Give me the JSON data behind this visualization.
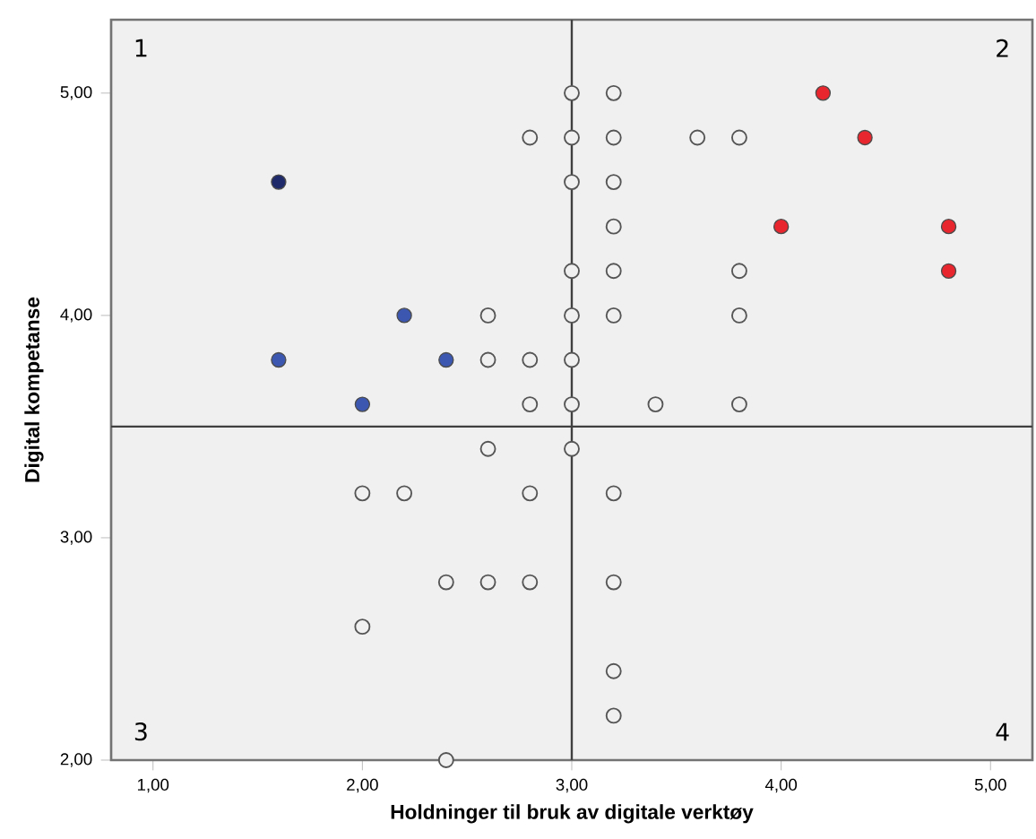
{
  "chart_data": {
    "type": "scatter",
    "xlabel": "Holdninger til bruk av digitale verktøy",
    "ylabel": "Digital kompetanse",
    "xlim": [
      0.8,
      5.2
    ],
    "ylim": [
      2.0,
      5.33
    ],
    "xticks": [
      {
        "value": 1,
        "label": "1,00"
      },
      {
        "value": 2,
        "label": "2,00"
      },
      {
        "value": 3,
        "label": "3,00"
      },
      {
        "value": 4,
        "label": "4,00"
      },
      {
        "value": 5,
        "label": "5,00"
      }
    ],
    "yticks": [
      {
        "value": 2,
        "label": "2,00"
      },
      {
        "value": 3,
        "label": "3,00"
      },
      {
        "value": 4,
        "label": "4,00"
      },
      {
        "value": 5,
        "label": "5,00"
      }
    ],
    "marker": "circle",
    "ref_lines": [
      {
        "axis": "x",
        "value": 3,
        "color": "#404040"
      },
      {
        "axis": "y",
        "value": 3.5,
        "color": "#404040"
      }
    ],
    "annotations": [
      "1",
      "2",
      "3",
      "4"
    ],
    "series": [
      {
        "color": "#555555",
        "x": [
          3.0,
          3.2,
          2.8,
          3.0,
          3.2,
          3.6,
          3.8,
          3.0,
          3.2,
          3.2,
          3.0,
          3.2,
          3.8,
          2.6,
          3.0,
          3.2,
          3.8,
          2.6,
          2.8,
          3.0,
          2.8,
          3.0,
          3.4,
          3.8,
          2.6,
          3.0,
          2.0,
          2.2,
          2.8,
          3.2,
          2.4,
          2.6,
          2.8,
          3.2,
          2.0,
          3.2,
          3.2,
          2.4
        ],
        "values": [
          5.0,
          5.0,
          4.8,
          4.8,
          4.8,
          4.8,
          4.8,
          4.6,
          4.6,
          4.4,
          4.2,
          4.2,
          4.2,
          4.0,
          4.0,
          4.0,
          4.0,
          3.8,
          3.8,
          3.8,
          3.6,
          3.6,
          3.6,
          3.6,
          3.4,
          3.4,
          3.2,
          3.2,
          3.2,
          3.2,
          2.8,
          2.8,
          2.8,
          2.8,
          2.6,
          2.4,
          2.2,
          2.0
        ]
      },
      {
        "colors": [
          "#1f2a6b",
          "#3b57b0",
          "#3b57b0",
          "#3b57b0",
          "#3b57b0"
        ],
        "x": [
          1.6,
          2.2,
          1.6,
          2.4,
          2.0
        ],
        "values": [
          4.6,
          4.0,
          3.8,
          3.8,
          3.6
        ]
      },
      {
        "colors": [
          "#e8262e",
          "#e8262e",
          "#e8262e",
          "#e8262e",
          "#e8262e"
        ],
        "x": [
          4.2,
          4.4,
          4.0,
          4.8,
          4.8
        ],
        "values": [
          5.0,
          4.8,
          4.4,
          4.4,
          4.2
        ]
      }
    ]
  }
}
